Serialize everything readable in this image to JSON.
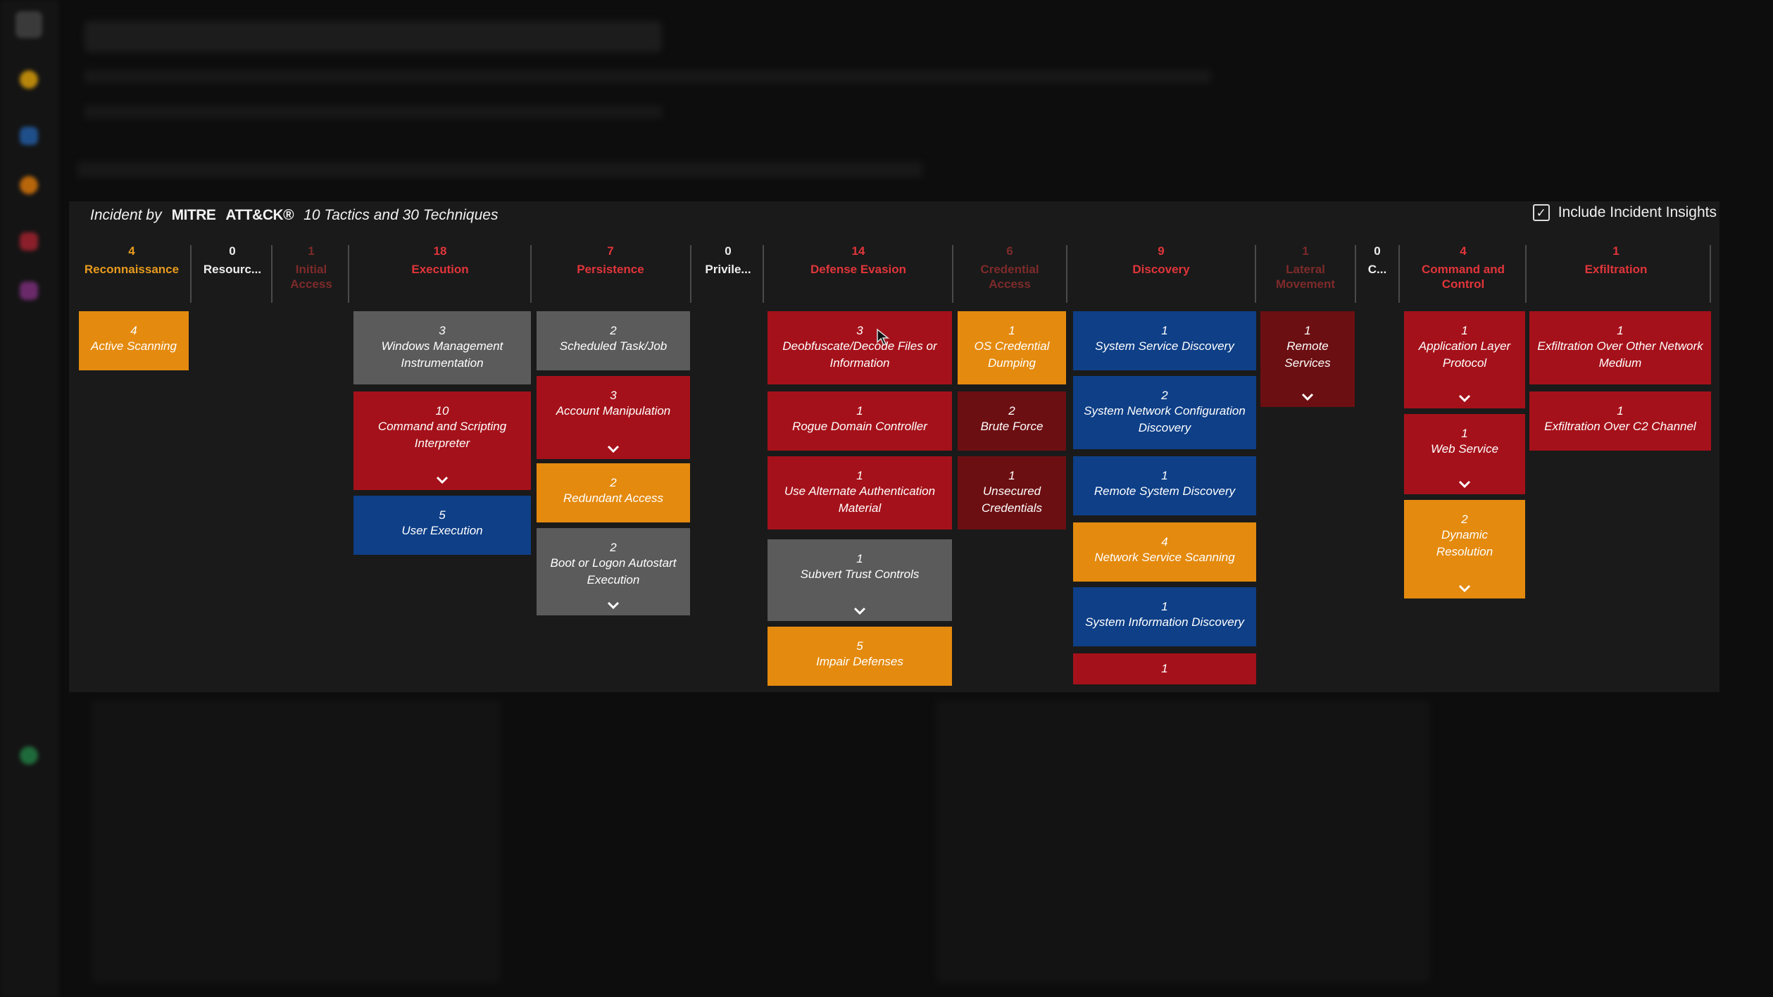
{
  "header": {
    "prefix": "Incident by",
    "brand_mitre": "MITRE",
    "brand_attack": "ATT&CK®",
    "summary": "10 Tactics and 30 Techniques",
    "include_insights_label": "Include Incident Insights",
    "include_insights_checked": true
  },
  "colors": {
    "orange": "#e48a0e",
    "red": "#a5111a",
    "dark_red": "#6c0f12",
    "gray": "#5b5b5b",
    "blue": "#0e3f87"
  },
  "tactics": [
    {
      "count": "4",
      "name": "Reconnaissance",
      "count_color": "#e89b1f",
      "name_color": "#e89b1f"
    },
    {
      "count": "0",
      "name": "Resourc...",
      "count_color": "#eeeeee",
      "name_color": "#eeeeee"
    },
    {
      "count": "1",
      "name": "Initial Access",
      "dim": true
    },
    {
      "count": "18",
      "name": "Execution",
      "count_color": "#e0353a",
      "name_color": "#e0353a"
    },
    {
      "count": "7",
      "name": "Persistence",
      "count_color": "#e0353a",
      "name_color": "#e0353a"
    },
    {
      "count": "0",
      "name": "Privile...",
      "count_color": "#eeeeee",
      "name_color": "#eeeeee"
    },
    {
      "count": "14",
      "name": "Defense Evasion",
      "count_color": "#e0353a",
      "name_color": "#e0353a"
    },
    {
      "count": "6",
      "name": "Credential Access",
      "dim": true
    },
    {
      "count": "9",
      "name": "Discovery",
      "count_color": "#e0353a",
      "name_color": "#e0353a"
    },
    {
      "count": "1",
      "name": "Lateral Movement",
      "dim": true
    },
    {
      "count": "0",
      "name": "C...",
      "count_color": "#eeeeee",
      "name_color": "#eeeeee"
    },
    {
      "count": "4",
      "name": "Command and Control",
      "count_color": "#e0353a",
      "name_color": "#e0353a"
    },
    {
      "count": "1",
      "name": "Exfiltration",
      "count_color": "#e0353a",
      "name_color": "#e0353a"
    }
  ],
  "techniques": [
    {
      "count": "4",
      "label": "Active Scanning",
      "color": "orange",
      "expandable": false
    },
    {
      "count": "3",
      "label": "Windows Management Instrumentation",
      "color": "gray",
      "expandable": false
    },
    {
      "count": "10",
      "label": "Command and Scripting Interpreter",
      "color": "red",
      "expandable": true
    },
    {
      "count": "5",
      "label": "User Execution",
      "color": "blue",
      "expandable": false
    },
    {
      "count": "2",
      "label": "Scheduled Task/Job",
      "color": "gray",
      "expandable": false
    },
    {
      "count": "3",
      "label": "Account Manipulation",
      "color": "red",
      "expandable": true
    },
    {
      "count": "2",
      "label": "Redundant Access",
      "color": "orange",
      "expandable": false
    },
    {
      "count": "2",
      "label": "Boot or Logon Autostart Execution",
      "color": "gray",
      "expandable": true
    },
    {
      "count": "3",
      "label": "Deobfuscate/Decode Files or Information",
      "color": "red",
      "expandable": false
    },
    {
      "count": "1",
      "label": "Rogue Domain Controller",
      "color": "red",
      "expandable": false
    },
    {
      "count": "1",
      "label": "Use Alternate Authentication Material",
      "color": "red",
      "expandable": false
    },
    {
      "count": "1",
      "label": "Subvert Trust Controls",
      "color": "gray",
      "expandable": true
    },
    {
      "count": "5",
      "label": "Impair Defenses",
      "color": "orange",
      "expandable": false
    },
    {
      "count": "1",
      "label": "OS Credential Dumping",
      "color": "orange",
      "expandable": false
    },
    {
      "count": "2",
      "label": "Brute Force",
      "color": "dark_red",
      "expandable": false
    },
    {
      "count": "1",
      "label": "Unsecured Credentials",
      "color": "dark_red",
      "expandable": false
    },
    {
      "count": "1",
      "label": "System Service Discovery",
      "color": "blue",
      "expandable": false
    },
    {
      "count": "2",
      "label": "System Network Configuration Discovery",
      "color": "blue",
      "expandable": false
    },
    {
      "count": "1",
      "label": "Remote System Discovery",
      "color": "blue",
      "expandable": false
    },
    {
      "count": "4",
      "label": "Network Service Scanning",
      "color": "orange",
      "expandable": false
    },
    {
      "count": "1",
      "label": "System Information Discovery",
      "color": "blue",
      "expandable": false
    },
    {
      "count": "1",
      "label": "",
      "color": "red",
      "expandable": false
    },
    {
      "count": "1",
      "label": "Remote Services",
      "color": "darkred",
      "expandable": true
    },
    {
      "count": "1",
      "label": "Application Layer Protocol",
      "color": "red",
      "expandable": true
    },
    {
      "count": "1",
      "label": "Web Service",
      "color": "red",
      "expandable": true
    },
    {
      "count": "2",
      "label": "Dynamic Resolution",
      "color": "orange",
      "expandable": true
    },
    {
      "count": "1",
      "label": "Exfiltration Over Other Network Medium",
      "color": "red",
      "expandable": false
    },
    {
      "count": "1",
      "label": "Exfiltration Over C2 Channel",
      "color": "red",
      "expandable": false
    }
  ]
}
